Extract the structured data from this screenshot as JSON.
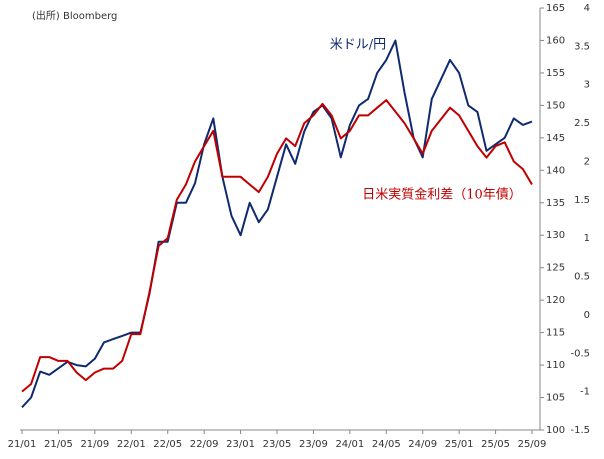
{
  "chart_data": {
    "type": "line",
    "source": "(出所) Bloomberg",
    "categories": [
      "21/01",
      null,
      null,
      null,
      "21/05",
      null,
      null,
      null,
      "21/09",
      null,
      null,
      null,
      "22/01",
      null,
      null,
      null,
      "22/05",
      null,
      null,
      null,
      "22/09",
      null,
      null,
      null,
      "23/01",
      null,
      null,
      null,
      "23/05",
      null,
      null,
      null,
      "23/09",
      null,
      null,
      null,
      "24/01",
      null,
      null,
      null,
      "24/05",
      null,
      null,
      null,
      "24/09",
      null,
      null,
      null,
      "25/01",
      null,
      null,
      null,
      "25/05",
      null,
      null,
      null,
      "25/09"
    ],
    "series": [
      {
        "name": "米ドル/円",
        "color": "#0f2a6e",
        "axis": "y",
        "values": [
          103.5,
          105,
          109,
          108.5,
          109.5,
          110.5,
          110,
          109.8,
          111,
          113.5,
          114,
          114.5,
          115,
          115,
          121,
          129,
          129,
          135,
          135,
          138,
          144,
          148,
          139,
          133,
          130,
          135,
          132,
          134,
          139,
          144,
          141,
          146,
          149,
          150,
          148,
          142,
          147,
          150,
          151,
          155,
          157,
          160,
          152,
          145,
          142,
          151,
          154,
          157,
          155,
          150,
          149,
          143,
          144,
          145,
          148,
          147,
          147.5
        ]
      },
      {
        "name": "日米実質金利差（10年債）",
        "color": "#c00000",
        "axis": "y2",
        "values": [
          -1.0,
          -0.9,
          -0.55,
          -0.55,
          -0.6,
          -0.6,
          -0.75,
          -0.85,
          -0.75,
          -0.7,
          -0.7,
          -0.6,
          -0.25,
          -0.25,
          0.3,
          0.9,
          1.0,
          1.5,
          1.7,
          2.0,
          2.2,
          2.4,
          1.8,
          1.8,
          1.8,
          1.7,
          1.6,
          1.8,
          2.1,
          2.3,
          2.2,
          2.5,
          2.6,
          2.75,
          2.6,
          2.3,
          2.4,
          2.6,
          2.6,
          2.7,
          2.8,
          2.65,
          2.5,
          2.3,
          2.1,
          2.4,
          2.55,
          2.7,
          2.6,
          2.4,
          2.2,
          2.05,
          2.2,
          2.25,
          2.0,
          1.9,
          1.7
        ]
      }
    ],
    "ylim": [
      100,
      165
    ],
    "yticks": [
      100,
      105,
      110,
      115,
      120,
      125,
      130,
      135,
      140,
      145,
      150,
      155,
      160,
      165
    ],
    "y2lim": [
      -1.5,
      4
    ],
    "y2ticks": [
      -1.5,
      -1,
      -0.5,
      0,
      0.5,
      1,
      1.5,
      2,
      2.5,
      3,
      3.5,
      4
    ],
    "grid": false
  }
}
